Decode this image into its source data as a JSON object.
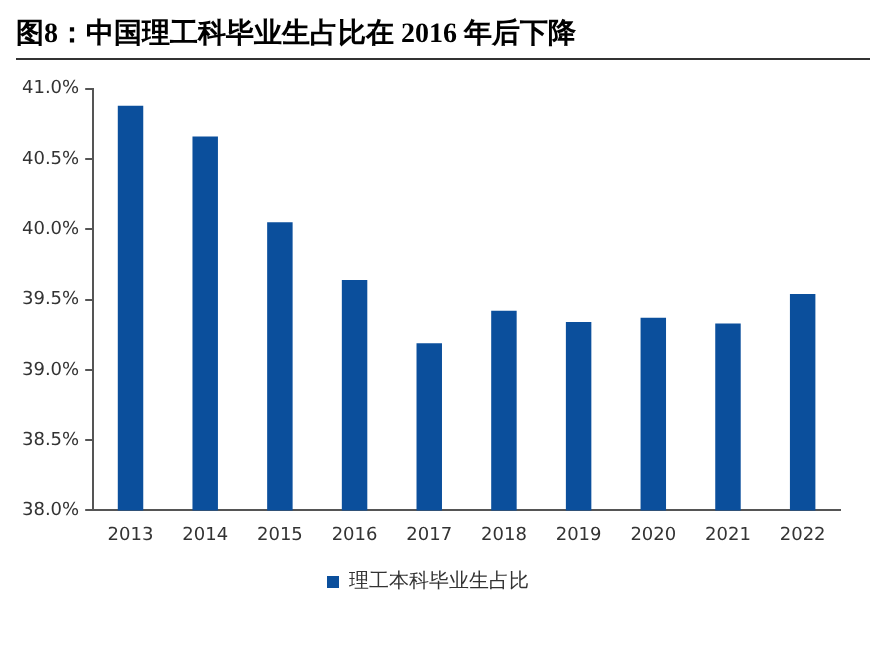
{
  "chart_data": {
    "type": "bar",
    "title": "图8：中国理工科毕业生占比在 2016 年后下降",
    "categories": [
      "2013",
      "2014",
      "2015",
      "2016",
      "2017",
      "2018",
      "2019",
      "2020",
      "2021",
      "2022"
    ],
    "series": [
      {
        "name": "理工本科毕业生占比",
        "color": "#0b4f9c",
        "values": [
          40.88,
          40.66,
          40.05,
          39.64,
          39.19,
          39.42,
          39.34,
          39.37,
          39.33,
          39.54
        ]
      }
    ],
    "ylim": [
      38,
      41
    ],
    "yticks": [
      {
        "value": 38,
        "label": "38.0%"
      },
      {
        "value": 38.5,
        "label": "38.5%"
      },
      {
        "value": 39,
        "label": "39.0%"
      },
      {
        "value": 39.5,
        "label": "39.5%"
      },
      {
        "value": 40,
        "label": "40.0%"
      },
      {
        "value": 40.5,
        "label": "40.5%"
      },
      {
        "value": 41,
        "label": "41.0%"
      }
    ],
    "grid": false,
    "legend": "bottom"
  }
}
